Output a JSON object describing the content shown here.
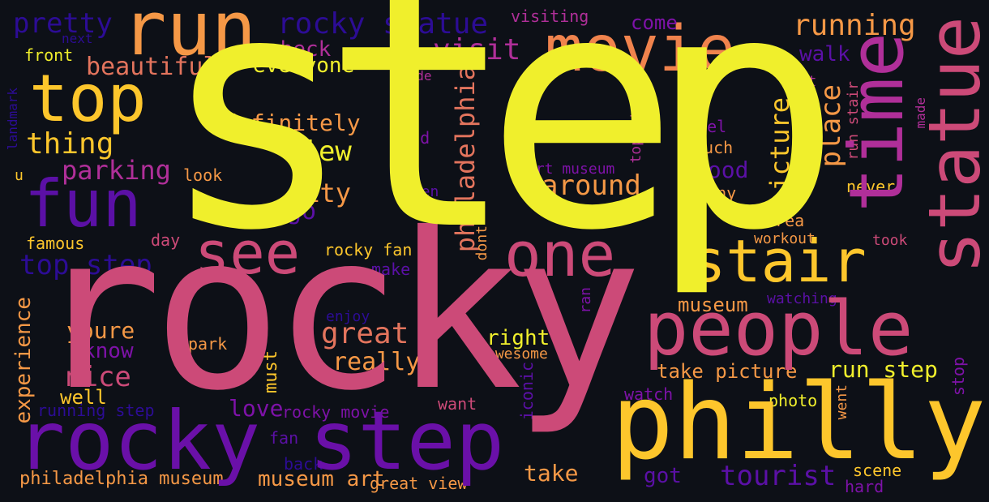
{
  "palette": {
    "background": "#0d1017",
    "yellow": "#f0ef2c",
    "gold": "#fdc62c",
    "orange": "#f59846",
    "coral": "#e3745d",
    "pink": "#cc4a78",
    "magenta": "#b02f99",
    "purple": "#7e12a8",
    "indigo": "#5b10a6",
    "navy": "#2c0c95"
  },
  "words": [
    {
      "text": "step",
      "color": "#f0ef2c"
    },
    {
      "text": "rocky",
      "color": "#cc4a78"
    },
    {
      "text": "philly",
      "color": "#fdc62c"
    },
    {
      "text": "people",
      "color": "#cc4a78"
    },
    {
      "text": "rocky step",
      "color": "#6a10a8"
    },
    {
      "text": "movie",
      "color": "#f0834d"
    },
    {
      "text": "run",
      "color": "#f59846"
    },
    {
      "text": "top",
      "color": "#fdc62c"
    },
    {
      "text": "fun",
      "color": "#5b10a6"
    },
    {
      "text": "see",
      "color": "#cc4a78"
    },
    {
      "text": "one",
      "color": "#cc4a78"
    },
    {
      "text": "stair",
      "color": "#fdc62c"
    },
    {
      "text": "time",
      "color": "#b02f99"
    },
    {
      "text": "statue",
      "color": "#cc4a78"
    },
    {
      "text": "rocky statue",
      "color": "#2c0c95"
    },
    {
      "text": "pretty",
      "color": "#2c0c95"
    },
    {
      "text": "visiting",
      "color": "#b02f99"
    },
    {
      "text": "come",
      "color": "#7e12a8"
    },
    {
      "text": "running",
      "color": "#f59846"
    },
    {
      "text": "check",
      "color": "#b02f99"
    },
    {
      "text": "visit",
      "color": "#b02f99"
    },
    {
      "text": "walk",
      "color": "#5b10a6"
    },
    {
      "text": "next",
      "color": "#2c0c95"
    },
    {
      "text": "front",
      "color": "#f0ef2c"
    },
    {
      "text": "beautiful",
      "color": "#e3745d"
    },
    {
      "text": "everyone",
      "color": "#f0ef2c"
    },
    {
      "text": "side",
      "color": "#b02f99"
    },
    {
      "text": "spot",
      "color": "#b02f99"
    },
    {
      "text": "landmark",
      "color": "#2c0c95"
    },
    {
      "text": "philadelphia",
      "color": "#e3745d"
    },
    {
      "text": "definitely",
      "color": "#f59846"
    },
    {
      "text": "thing",
      "color": "#fdc62c"
    },
    {
      "text": "didnt",
      "color": "#2c0c95"
    },
    {
      "text": "head",
      "color": "#7e12a8"
    },
    {
      "text": "view",
      "color": "#f0ef2c"
    },
    {
      "text": "top stair",
      "color": "#b02f99"
    },
    {
      "text": "feel",
      "color": "#7e12a8"
    },
    {
      "text": "much",
      "color": "#f59846"
    },
    {
      "text": "made",
      "color": "#b02f99"
    },
    {
      "text": "run stair",
      "color": "#cc4a78"
    },
    {
      "text": "place",
      "color": "#f59846"
    },
    {
      "text": "u",
      "color": "#fdc62c"
    },
    {
      "text": "parking",
      "color": "#b02f99"
    },
    {
      "text": "look",
      "color": "#f59846"
    },
    {
      "text": "art museum",
      "color": "#7e12a8"
    },
    {
      "text": "good",
      "color": "#5b10a6"
    },
    {
      "text": "around",
      "color": "#f59846"
    },
    {
      "text": "city",
      "color": "#f59846"
    },
    {
      "text": "even",
      "color": "#5b10a6"
    },
    {
      "text": "im",
      "color": "#5b10a6"
    },
    {
      "text": "many",
      "color": "#f59846"
    },
    {
      "text": "never",
      "color": "#fdc62c"
    },
    {
      "text": "picture",
      "color": "#fdc62c"
    },
    {
      "text": "go",
      "color": "#5b10a6"
    },
    {
      "text": "area",
      "color": "#f59846"
    },
    {
      "text": "day",
      "color": "#cc4a78"
    },
    {
      "text": "famous",
      "color": "#fdc62c"
    },
    {
      "text": "dont",
      "color": "#f59846"
    },
    {
      "text": "workout",
      "color": "#f59846"
    },
    {
      "text": "took",
      "color": "#cc4a78"
    },
    {
      "text": "top step",
      "color": "#2c0c95"
    },
    {
      "text": "rocky fan",
      "color": "#fdc62c"
    },
    {
      "text": "make",
      "color": "#5b10a6"
    },
    {
      "text": "way",
      "color": "#b02f99"
    },
    {
      "text": "museum",
      "color": "#f59846"
    },
    {
      "text": "watching",
      "color": "#5b10a6"
    },
    {
      "text": "ran",
      "color": "#7e12a8"
    },
    {
      "text": "enjoy",
      "color": "#2c0c95"
    },
    {
      "text": "experience",
      "color": "#f59846"
    },
    {
      "text": "youre",
      "color": "#f59846"
    },
    {
      "text": "great",
      "color": "#e3745d"
    },
    {
      "text": "park",
      "color": "#f59846"
    },
    {
      "text": "right",
      "color": "#f0ef2c"
    },
    {
      "text": "awesome",
      "color": "#f59846"
    },
    {
      "text": "know",
      "color": "#7e12a8"
    },
    {
      "text": "really",
      "color": "#f59846"
    },
    {
      "text": "must",
      "color": "#fdc62c"
    },
    {
      "text": "iconic",
      "color": "#5b10a6"
    },
    {
      "text": "take picture",
      "color": "#f59846"
    },
    {
      "text": "run step",
      "color": "#f0ef2c"
    },
    {
      "text": "stop",
      "color": "#7e12a8"
    },
    {
      "text": "nice",
      "color": "#cc4a78"
    },
    {
      "text": "well",
      "color": "#fdc62c"
    },
    {
      "text": "running step",
      "color": "#2c0c95"
    },
    {
      "text": "love",
      "color": "#7e12a8"
    },
    {
      "text": "rocky movie",
      "color": "#7e12a8"
    },
    {
      "text": "want",
      "color": "#cc4a78"
    },
    {
      "text": "watch",
      "color": "#7e12a8"
    },
    {
      "text": "photo",
      "color": "#f0ef2c"
    },
    {
      "text": "went",
      "color": "#f59846"
    },
    {
      "text": "fan",
      "color": "#5b10a6"
    },
    {
      "text": "back",
      "color": "#2c0c95"
    },
    {
      "text": "take",
      "color": "#f59846"
    },
    {
      "text": "got",
      "color": "#5b10a6"
    },
    {
      "text": "tourist",
      "color": "#5b10a6"
    },
    {
      "text": "scene",
      "color": "#fdc62c"
    },
    {
      "text": "philadelphia museum",
      "color": "#f59846"
    },
    {
      "text": "museum art",
      "color": "#f59846"
    },
    {
      "text": "great view",
      "color": "#f59846"
    },
    {
      "text": "hard",
      "color": "#7e12a8"
    }
  ]
}
